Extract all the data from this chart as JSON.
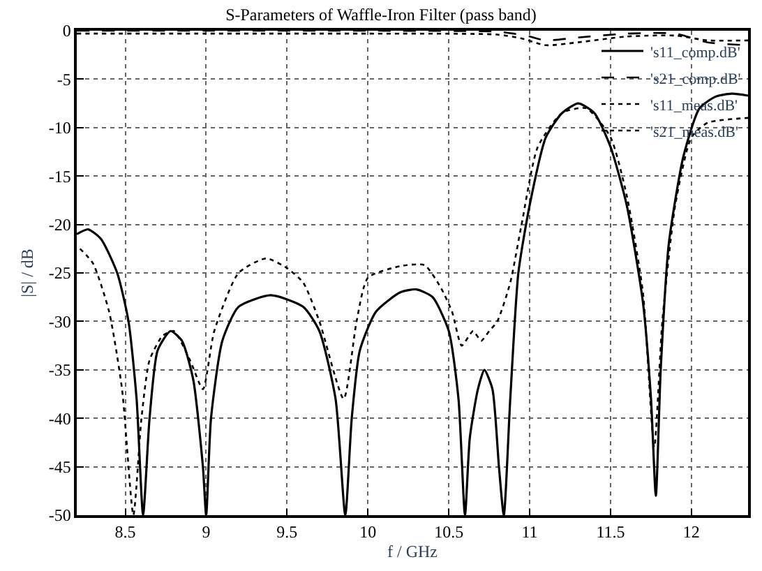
{
  "chart_data": {
    "type": "line",
    "title": "S-Parameters of Waffle-Iron Filter (pass band)",
    "xlabel": "f / GHz",
    "ylabel": "|S| / dB",
    "xlim": [
      8.2,
      12.35
    ],
    "ylim": [
      -50,
      0
    ],
    "xticks": [
      8.5,
      9,
      9.5,
      10,
      10.5,
      11,
      11.5,
      12
    ],
    "yticks": [
      -50,
      -45,
      -40,
      -35,
      -30,
      -25,
      -20,
      -15,
      -10,
      -5,
      0
    ],
    "grid": true,
    "legend": "top right",
    "marker": "none",
    "series": [
      {
        "name": "'s11_comp.dB'",
        "color": "#000000",
        "line_style": "solid",
        "x": [
          8.2,
          8.27,
          8.35,
          8.45,
          8.52,
          8.57,
          8.61,
          8.65,
          8.7,
          8.78,
          8.85,
          8.92,
          8.98,
          9.0,
          9.03,
          9.1,
          9.2,
          9.4,
          9.6,
          9.7,
          9.8,
          9.86,
          9.9,
          9.95,
          10.05,
          10.2,
          10.3,
          10.4,
          10.5,
          10.56,
          10.6,
          10.63,
          10.68,
          10.72,
          10.77,
          10.81,
          10.84,
          10.88,
          10.93,
          11.0,
          11.1,
          11.2,
          11.3,
          11.4,
          11.5,
          11.6,
          11.7,
          11.75,
          11.78,
          11.81,
          11.86,
          11.95,
          12.05,
          12.15,
          12.25,
          12.35
        ],
        "values": [
          -21,
          -20.5,
          -21.5,
          -25,
          -30,
          -38,
          -50,
          -40,
          -33,
          -31,
          -32,
          -36,
          -45,
          -50,
          -40,
          -32,
          -28.5,
          -27.3,
          -28.5,
          -31,
          -38,
          -50,
          -40,
          -33,
          -29,
          -27,
          -26.7,
          -27.5,
          -31,
          -38,
          -50,
          -42,
          -37,
          -35,
          -37,
          -45,
          -50,
          -38,
          -25,
          -18,
          -11,
          -8.5,
          -7.5,
          -8.5,
          -12,
          -18,
          -28,
          -38,
          -48,
          -35,
          -22,
          -13,
          -8,
          -6.8,
          -6.5,
          -6.7
        ]
      },
      {
        "name": "'s21_comp.dB'",
        "color": "#000000",
        "line_style": "dashed",
        "x": [
          8.2,
          9,
          10,
          10.8,
          10.9,
          11.0,
          11.1,
          11.3,
          11.6,
          11.9,
          12.1,
          12.35
        ],
        "values": [
          0,
          0,
          0,
          -0.1,
          -0.3,
          -0.6,
          -1,
          -0.7,
          -0.3,
          -0.3,
          -1.2,
          -1.5
        ]
      },
      {
        "name": "'s11_meas.dB'",
        "color": "#000000",
        "line_style": "dotted",
        "x": [
          8.22,
          8.3,
          8.4,
          8.48,
          8.55,
          8.6,
          8.65,
          8.73,
          8.8,
          8.9,
          8.98,
          9.05,
          9.2,
          9.37,
          9.5,
          9.6,
          9.7,
          9.85,
          9.93,
          10.0,
          10.2,
          10.35,
          10.45,
          10.52,
          10.58,
          10.65,
          10.7,
          10.75,
          10.8,
          10.88,
          10.95,
          11.05,
          11.2,
          11.35,
          11.5,
          11.6,
          11.7,
          11.77,
          11.82,
          11.9,
          12.0,
          12.1,
          12.35
        ],
        "values": [
          -22.5,
          -24,
          -29,
          -37,
          -50,
          -40,
          -34,
          -31.5,
          -31,
          -34,
          -37,
          -31,
          -25,
          -23.5,
          -24.5,
          -26,
          -30,
          -38,
          -30,
          -25.5,
          -24.3,
          -24.2,
          -26.5,
          -29,
          -32.5,
          -31,
          -32,
          -31,
          -30,
          -26,
          -20,
          -12,
          -8.5,
          -8,
          -11,
          -17,
          -27,
          -43,
          -30,
          -18,
          -11,
          -9.5,
          -9
        ]
      },
      {
        "name": "'s21_meas.dB'",
        "color": "#000000",
        "line_style": "dotted",
        "x": [
          8.2,
          9,
          10,
          10.8,
          10.95,
          11.1,
          11.3,
          11.6,
          11.9,
          12.1,
          12.35
        ],
        "values": [
          -0.3,
          -0.3,
          -0.3,
          -0.4,
          -0.8,
          -1.5,
          -1.2,
          -0.6,
          -0.5,
          -1.0,
          -1.0
        ]
      }
    ]
  }
}
